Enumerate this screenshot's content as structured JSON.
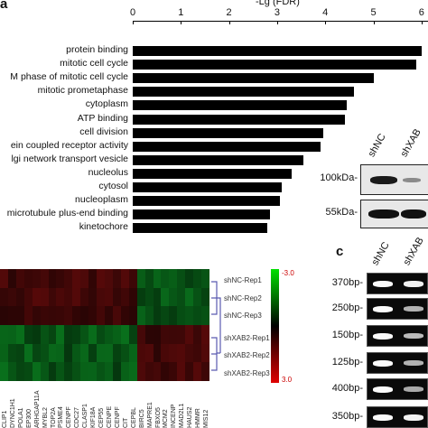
{
  "panel_a": {
    "letter": "a",
    "axis_title": "-Lg (FDR)",
    "ticks": [
      "0",
      "1",
      "2",
      "3",
      "4",
      "5",
      "6"
    ],
    "terms": [
      "protein binding",
      "mitotic cell cycle",
      "M phase of mitotic cell cycle",
      "mitotic prometaphase",
      "cytoplasm",
      "ATP binding",
      "cell division",
      "ein coupled receptor activity",
      "lgi network transport vesicle",
      "nucleolus",
      "cytosol",
      "nucleoplasm",
      "microtubule plus-end binding",
      "kinetochore"
    ]
  },
  "chart_data": {
    "type": "bar",
    "orientation": "horizontal",
    "xlabel": "-Lg (FDR)",
    "xlim": [
      0,
      6
    ],
    "categories": [
      "protein binding",
      "mitotic cell cycle",
      "M phase of mitotic cell cycle",
      "mitotic prometaphase",
      "cytoplasm",
      "ATP binding",
      "cell division",
      "ein coupled receptor activity",
      "lgi network transport vesicle",
      "nucleolus",
      "cytosol",
      "nucleoplasm",
      "microtubule plus-end binding",
      "kinetochore"
    ],
    "values": [
      6.0,
      5.9,
      5.0,
      4.6,
      4.45,
      4.4,
      3.95,
      3.9,
      3.55,
      3.3,
      3.1,
      3.05,
      2.85,
      2.8
    ]
  },
  "panel_blot": {
    "lane_labels": [
      "shNC",
      "shXAB"
    ],
    "markers": [
      "100kDa-",
      "55kDa-"
    ]
  },
  "panel_c": {
    "letter": "c",
    "lane_labels": [
      "shNC",
      "shXAB"
    ],
    "markers": [
      "370bp-",
      "250bp-",
      "150bp-",
      "125bp-",
      "400bp-",
      "350bp-"
    ]
  },
  "heatmap": {
    "row_labels": [
      "shNC-Rep1",
      "shNC-Rep2",
      "shNC-Rep3",
      "shXAB2-Rep1",
      "shXAB2-Rep2",
      "shXAB2-Rep3"
    ],
    "legend_top": "3.0",
    "legend_bottom": "3.0",
    "legend_top_prefix": "-",
    "gene_labels": [
      "CLIP1",
      "DYNC1H1",
      "POLA1",
      "EP300",
      "ARHGAP11A",
      "MYBL2",
      "TOP2A",
      "PSME4",
      "CENPF",
      "CDC27",
      "CLASP1",
      "KIF18A",
      "CEP55",
      "CENPE",
      "CENPF",
      "CIT",
      "CEPBL",
      "BIRC5",
      "MAPRE1",
      "FBXO5",
      "MCM2",
      "INCENP",
      "MAD2L1",
      "HAUS2",
      "HMMR",
      "MIS12"
    ]
  }
}
